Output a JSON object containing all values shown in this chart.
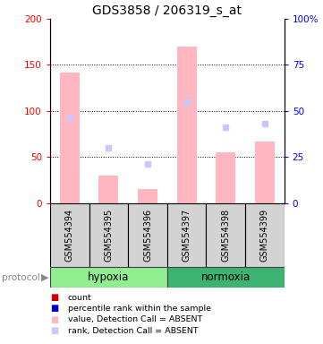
{
  "title": "GDS3858 / 206319_s_at",
  "samples": [
    "GSM554394",
    "GSM554395",
    "GSM554396",
    "GSM554397",
    "GSM554398",
    "GSM554399"
  ],
  "bar_values": [
    142,
    30,
    15,
    170,
    55,
    67
  ],
  "bar_color": "#FFB6C1",
  "blue_squares": [
    92,
    60,
    42,
    110,
    82,
    86
  ],
  "ylim_left": [
    0,
    200
  ],
  "ylim_right": [
    0,
    100
  ],
  "yticks_left": [
    0,
    50,
    100,
    150,
    200
  ],
  "yticks_right": [
    0,
    25,
    50,
    75,
    100
  ],
  "ytick_labels_right": [
    "0",
    "25",
    "50",
    "75",
    "100%"
  ],
  "ytick_labels_left": [
    "0",
    "50",
    "100",
    "150",
    "200"
  ],
  "grid_lines": [
    50,
    100,
    150
  ],
  "title_fontsize": 10,
  "hypoxia_color": "#90EE90",
  "normoxia_color": "#3CB371",
  "bar_width": 0.5,
  "legend_items": [
    {
      "color": "#CC0000",
      "label": "count"
    },
    {
      "color": "#0000CC",
      "label": "percentile rank within the sample"
    },
    {
      "color": "#FFB6C1",
      "label": "value, Detection Call = ABSENT"
    },
    {
      "color": "#C8C8FF",
      "label": "rank, Detection Call = ABSENT"
    }
  ]
}
